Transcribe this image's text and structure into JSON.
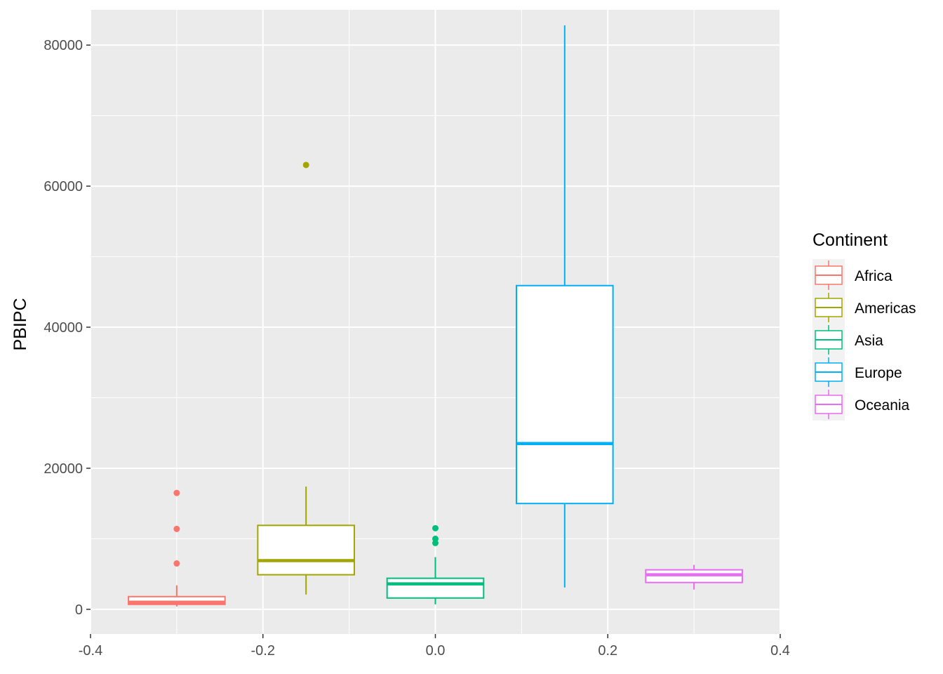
{
  "chart_data": {
    "type": "boxplot",
    "title": "",
    "xlabel": "",
    "ylabel": "PBIPC",
    "xlim": [
      -0.4,
      0.4
    ],
    "ylim": [
      -3500,
      85000
    ],
    "x_ticks": [
      {
        "value": -0.4,
        "label": "-0.4"
      },
      {
        "value": -0.2,
        "label": "-0.2"
      },
      {
        "value": 0.0,
        "label": "0.0"
      },
      {
        "value": 0.2,
        "label": "0.2"
      },
      {
        "value": 0.4,
        "label": "0.4"
      }
    ],
    "y_ticks": [
      {
        "value": 0,
        "label": "0"
      },
      {
        "value": 20000,
        "label": "20000"
      },
      {
        "value": 40000,
        "label": "40000"
      },
      {
        "value": 60000,
        "label": "60000"
      },
      {
        "value": 80000,
        "label": "80000"
      }
    ],
    "grid": true,
    "background": "#ebebeb",
    "legend": {
      "title": "Continent",
      "position": "right"
    },
    "series": [
      {
        "name": "Africa",
        "color": "#F8766D",
        "x": -0.3,
        "width": 0.112,
        "lower_whisker": 400,
        "q1": 700,
        "median": 1000,
        "q3": 1800,
        "upper_whisker": 3400,
        "outliers": [
          6500,
          11400,
          16500
        ]
      },
      {
        "name": "Americas",
        "color": "#A3A500",
        "x": -0.15,
        "width": 0.112,
        "lower_whisker": 2100,
        "q1": 4900,
        "median": 6900,
        "q3": 11900,
        "upper_whisker": 17400,
        "outliers": [
          63000
        ]
      },
      {
        "name": "Asia",
        "color": "#00BF7D",
        "x": 0.0,
        "width": 0.112,
        "lower_whisker": 700,
        "q1": 1600,
        "median": 3600,
        "q3": 4400,
        "upper_whisker": 7400,
        "outliers": [
          9400,
          10000,
          11500
        ]
      },
      {
        "name": "Europe",
        "color": "#00B0F6",
        "x": 0.15,
        "width": 0.112,
        "lower_whisker": 3100,
        "q1": 15000,
        "median": 23500,
        "q3": 45900,
        "upper_whisker": 82800,
        "outliers": []
      },
      {
        "name": "Oceania",
        "color": "#E76BF3",
        "x": 0.3,
        "width": 0.112,
        "lower_whisker": 2800,
        "q1": 3800,
        "median": 4900,
        "q3": 5600,
        "upper_whisker": 6300,
        "outliers": []
      }
    ]
  }
}
